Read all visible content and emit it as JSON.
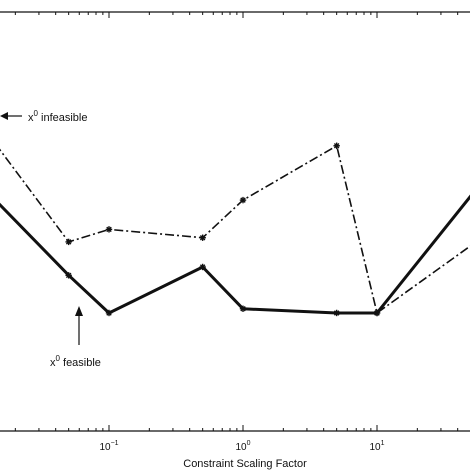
{
  "chart_data": {
    "type": "line",
    "xlabel": "Constraint Scaling Factor",
    "ylabel": "",
    "xscale": "log",
    "xlim": [
      0.01,
      100
    ],
    "ylim": [
      0,
      1
    ],
    "grid": false,
    "x_ticks": [
      0.1,
      1,
      10
    ],
    "x_tick_labels": [
      {
        "base": "10",
        "exp": "−1"
      },
      {
        "base": "10",
        "exp": "0"
      },
      {
        "base": "10",
        "exp": "1"
      }
    ],
    "series": [
      {
        "style": "solid",
        "x": [
          0.01,
          0.05,
          0.1,
          0.5,
          1,
          5,
          10,
          100
        ],
        "y": [
          0.6,
          0.37,
          0.28,
          0.39,
          0.29,
          0.28,
          0.28,
          0.68
        ]
      },
      {
        "style": "dash-dot",
        "x": [
          0.01,
          0.05,
          0.1,
          0.5,
          1,
          5,
          10,
          100
        ],
        "y": [
          0.75,
          0.45,
          0.48,
          0.46,
          0.55,
          0.68,
          0.28,
          0.51
        ]
      }
    ],
    "annotations": [
      {
        "base": "x",
        "sup": "0",
        "text": " infeasible"
      },
      {
        "base": "x",
        "sup": "0",
        "text": " feasible"
      }
    ],
    "colors": {
      "line": "#111111",
      "axis": "#111111",
      "background": "#ffffff"
    }
  }
}
